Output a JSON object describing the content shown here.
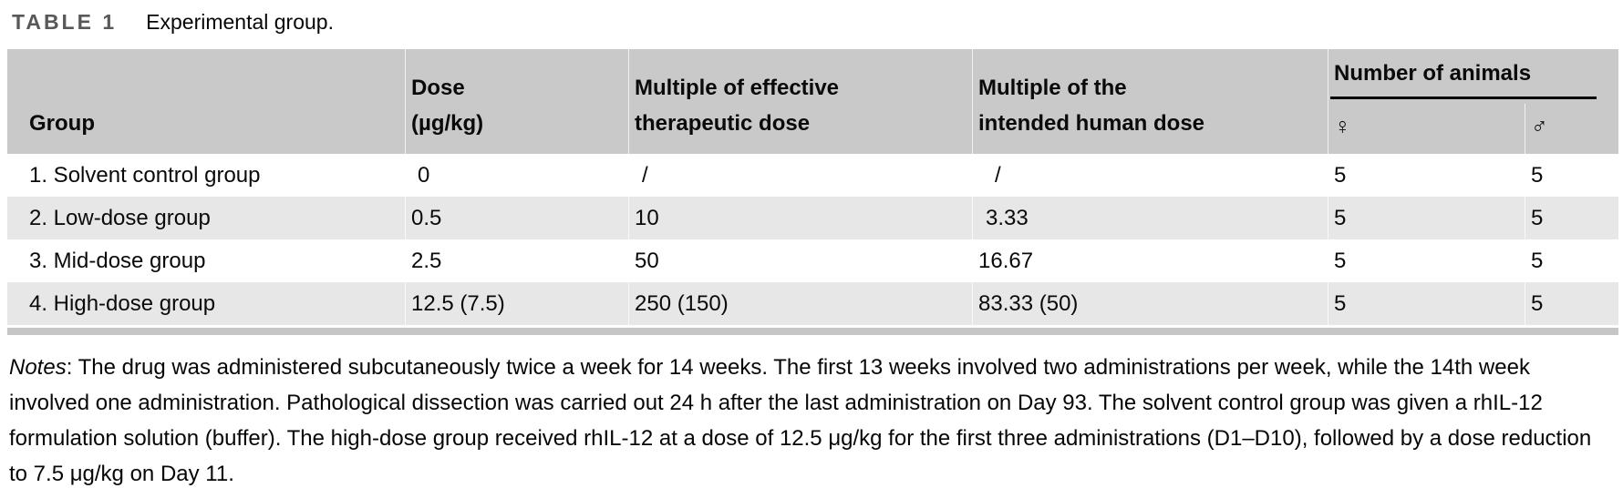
{
  "title": {
    "label": "TABLE 1",
    "caption": "Experimental group."
  },
  "table": {
    "headers": {
      "group": "Group",
      "dose": [
        "Dose",
        "(µg/kg)"
      ],
      "multiple_effective": [
        "Multiple of effective",
        "therapeutic dose"
      ],
      "multiple_human": [
        "Multiple of the",
        "intended human dose"
      ],
      "number_of_animals": "Number of animals",
      "female_symbol": "♀",
      "male_symbol": "♂"
    },
    "rows": [
      {
        "group": "1. Solvent control group",
        "dose": "0",
        "multiple_effective": "/",
        "multiple_human": "/",
        "female_n": "5",
        "male_n": "5"
      },
      {
        "group": "2. Low-dose group",
        "dose": "0.5",
        "multiple_effective": "10",
        "multiple_human": "3.33",
        "female_n": "5",
        "male_n": "5"
      },
      {
        "group": "3. Mid-dose group",
        "dose": "2.5",
        "multiple_effective": "50",
        "multiple_human": "16.67",
        "female_n": "5",
        "male_n": "5"
      },
      {
        "group": "4. High-dose group",
        "dose": "12.5 (7.5)",
        "multiple_effective": "250 (150)",
        "multiple_human": "83.33 (50)",
        "female_n": "5",
        "male_n": "5"
      }
    ]
  },
  "notes": {
    "label": "Notes",
    "text": ": The drug was administered subcutaneously twice a week for 14 weeks. The first 13 weeks involved two administrations per week, while the 14th week involved one administration. Pathological dissection was carried out 24 h after the last administration on Day 93. The solvent control group was given a rhIL-12 formulation solution (buffer). The high-dose group received rhIL-12 at a dose of 12.5 μg/kg for the first three administrations (D1–D10), followed by a dose reduction to 7.5 μg/kg on Day 11."
  },
  "colors": {
    "header_background": "#c9c9c9",
    "row_stripe": "#e7e7e7",
    "table_bottom_bar": "#c6c6c6",
    "title_label_color": "#59595b",
    "animals_rule_color": "#000000"
  }
}
